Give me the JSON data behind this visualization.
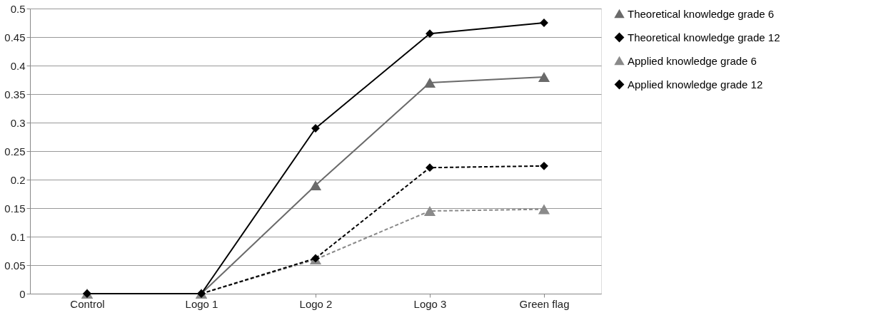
{
  "chart_data": {
    "type": "line",
    "categories": [
      "Control",
      "Logo 1",
      "Logo 2",
      "Logo 3",
      "Green flag"
    ],
    "series": [
      {
        "name": "Theoretical knowledge grade 6",
        "color": "#6a6a6a",
        "marker": "triangle",
        "line_style": "solid",
        "values": [
          0,
          0,
          0.19,
          0.37,
          0.38
        ]
      },
      {
        "name": "Theoretical knowledge grade 12",
        "color": "#000000",
        "marker": "diamond",
        "line_style": "solid",
        "values": [
          0,
          0,
          0.29,
          0.456,
          0.475
        ]
      },
      {
        "name": "Applied knowledge grade 6",
        "color": "#8a8a8a",
        "marker": "triangle",
        "line_style": "dashed",
        "values": [
          0,
          0,
          0.06,
          0.145,
          0.148
        ]
      },
      {
        "name": "Applied knowledge grade 12",
        "color": "#000000",
        "marker": "diamond",
        "line_style": "dashed",
        "values": [
          0,
          0,
          0.062,
          0.221,
          0.224
        ]
      }
    ],
    "ylim": [
      0,
      0.5
    ],
    "yticks": [
      0,
      0.05,
      0.1,
      0.15,
      0.2,
      0.25,
      0.3,
      0.35,
      0.4,
      0.45,
      0.5
    ],
    "grid": "y",
    "legend": "right"
  }
}
